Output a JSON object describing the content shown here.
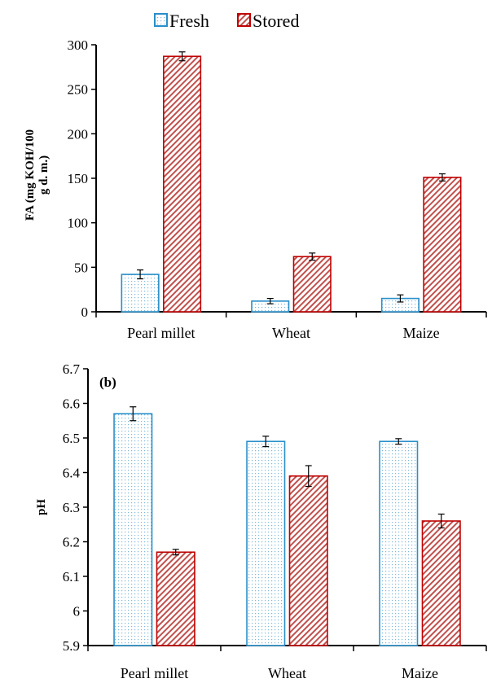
{
  "legend": {
    "items": [
      {
        "label": "Fresh",
        "series": 0
      },
      {
        "label": "Stored",
        "series": 1
      }
    ]
  },
  "colors": {
    "fresh_edge": "#2a8fc9",
    "fresh_dot": "#7fb8d9",
    "stored_edge": "#c00000",
    "stored_hatch": "#c0504d",
    "axis": "#000000"
  },
  "chart_data": [
    {
      "type": "bar",
      "panel_label": "",
      "ylabel": [
        "FA (mg KOH/100",
        "g d. m.)"
      ],
      "xlabel": "",
      "categories": [
        "Pearl millet",
        "Wheat",
        "Maize"
      ],
      "ylim": [
        0,
        300
      ],
      "yticks": [
        "0",
        "50",
        "100",
        "150",
        "200",
        "250",
        "300"
      ],
      "ytick_values": [
        0,
        50,
        100,
        150,
        200,
        250,
        300
      ],
      "series": [
        {
          "name": "Fresh",
          "values": [
            42,
            12,
            15
          ],
          "errors": [
            5,
            3,
            4
          ]
        },
        {
          "name": "Stored",
          "values": [
            287,
            62,
            151
          ],
          "errors": [
            5,
            4,
            4
          ]
        }
      ]
    },
    {
      "type": "bar",
      "panel_label": "(b)",
      "ylabel": [
        "pH"
      ],
      "xlabel": "",
      "categories": [
        "Pearl millet",
        "Wheat",
        "Maize"
      ],
      "ylim": [
        5.9,
        6.7
      ],
      "yticks": [
        "5.9",
        "6",
        "6.1",
        "6.2",
        "6.3",
        "6.4",
        "6.5",
        "6.6",
        "6.7"
      ],
      "ytick_values": [
        5.9,
        6.0,
        6.1,
        6.2,
        6.3,
        6.4,
        6.5,
        6.6,
        6.7
      ],
      "series": [
        {
          "name": "Fresh",
          "values": [
            6.57,
            6.49,
            6.49
          ],
          "errors": [
            0.02,
            0.015,
            0.008
          ]
        },
        {
          "name": "Stored",
          "values": [
            6.17,
            6.39,
            6.26
          ],
          "errors": [
            0.008,
            0.03,
            0.02
          ]
        }
      ]
    }
  ]
}
